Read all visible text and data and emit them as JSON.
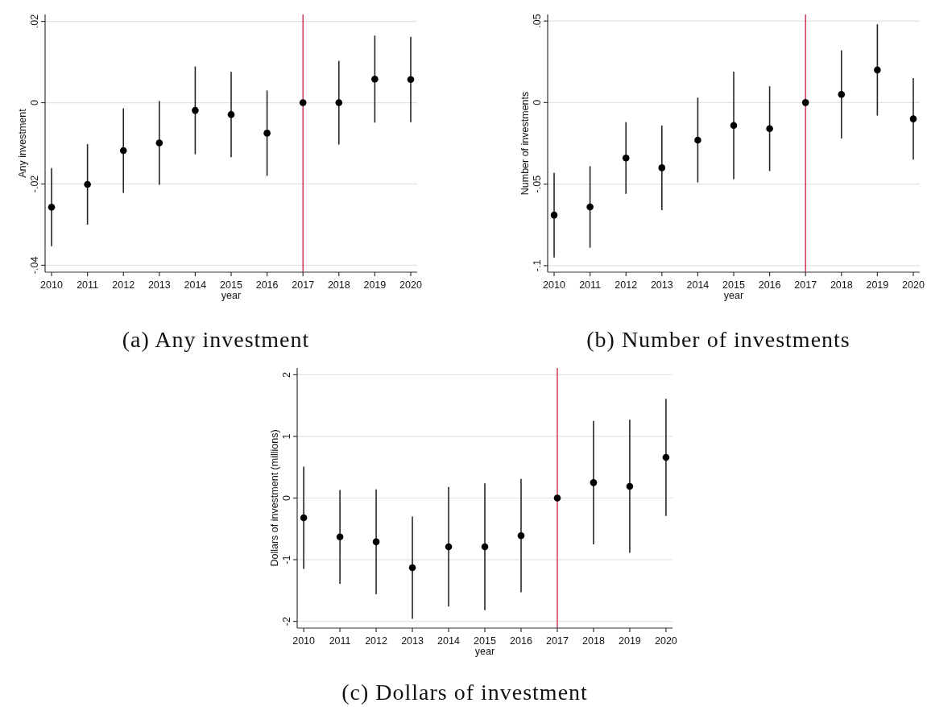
{
  "chart_data": [
    {
      "type": "scatter",
      "title": "(a) Any investment",
      "xlabel": "year",
      "ylabel": "Any investment",
      "x": [
        2010,
        2011,
        2012,
        2013,
        2014,
        2015,
        2016,
        2017,
        2018,
        2019,
        2020
      ],
      "values": [
        -0.0257,
        -0.0201,
        -0.0118,
        -0.0099,
        -0.0019,
        -0.0029,
        -0.0075,
        0,
        0,
        0.0058,
        0.0057
      ],
      "errors": [
        0.0096,
        0.0099,
        0.0104,
        0.0103,
        0.0108,
        0.0105,
        0.0105,
        null,
        0.0103,
        0.0107,
        0.0105
      ],
      "color": "#000000",
      "marker": "circle",
      "xlim": [
        2009.82,
        2020.18
      ],
      "xticks": [
        2010,
        2011,
        2012,
        2013,
        2014,
        2015,
        2016,
        2017,
        2018,
        2019,
        2020
      ],
      "ylim": [
        -0.0417,
        0.0217
      ],
      "yticks": [
        {
          "value": -0.04,
          "label": "-.04"
        },
        {
          "value": -0.02,
          "label": "-.02"
        },
        0,
        {
          "value": 0.02,
          "label": ".02"
        }
      ],
      "grid": "y",
      "ref_lines": [
        {
          "axis": "x",
          "value": 2017,
          "color": "#d01c3c"
        }
      ]
    },
    {
      "type": "scatter",
      "title": "(b) Number of investments",
      "xlabel": "year",
      "ylabel": "Number of investments",
      "x": [
        2010,
        2011,
        2012,
        2013,
        2014,
        2015,
        2016,
        2017,
        2018,
        2019,
        2020
      ],
      "values": [
        -0.069,
        -0.064,
        -0.034,
        -0.04,
        -0.023,
        -0.014,
        -0.016,
        0,
        0.005,
        0.02,
        -0.01
      ],
      "errors": [
        0.026,
        0.025,
        0.022,
        0.026,
        0.026,
        0.033,
        0.026,
        null,
        0.027,
        0.028,
        0.025
      ],
      "color": "#000000",
      "marker": "circle",
      "xlim": [
        2009.82,
        2020.18
      ],
      "xticks": [
        2010,
        2011,
        2012,
        2013,
        2014,
        2015,
        2016,
        2017,
        2018,
        2019,
        2020
      ],
      "ylim": [
        -0.104,
        0.054
      ],
      "yticks": [
        {
          "value": -0.1,
          "label": "-.1"
        },
        {
          "value": -0.05,
          "label": "-.05"
        },
        0,
        {
          "value": 0.05,
          "label": ".05"
        }
      ],
      "grid": "y",
      "ref_lines": [
        {
          "axis": "x",
          "value": 2017,
          "color": "#d01c3c"
        }
      ]
    },
    {
      "type": "scatter",
      "title": "(c) Dollars of investment",
      "xlabel": "year",
      "ylabel": "Dollars of investment (millions)",
      "x": [
        2010,
        2011,
        2012,
        2013,
        2014,
        2015,
        2016,
        2017,
        2018,
        2019,
        2020
      ],
      "values": [
        -0.32,
        -0.63,
        -0.71,
        -1.13,
        -0.79,
        -0.79,
        -0.61,
        0,
        0.25,
        0.19,
        0.66
      ],
      "errors": [
        0.83,
        0.76,
        0.85,
        0.83,
        0.97,
        1.03,
        0.92,
        null,
        1.0,
        1.08,
        0.95
      ],
      "color": "#000000",
      "marker": "circle",
      "xlim": [
        2009.82,
        2020.18
      ],
      "xticks": [
        2010,
        2011,
        2012,
        2013,
        2014,
        2015,
        2016,
        2017,
        2018,
        2019,
        2020
      ],
      "ylim": [
        -2.11,
        2.11
      ],
      "yticks": [
        -2,
        -1,
        0,
        1,
        2
      ],
      "grid": "y",
      "ref_lines": [
        {
          "axis": "x",
          "value": 2017,
          "color": "#d01c3c"
        }
      ]
    }
  ]
}
